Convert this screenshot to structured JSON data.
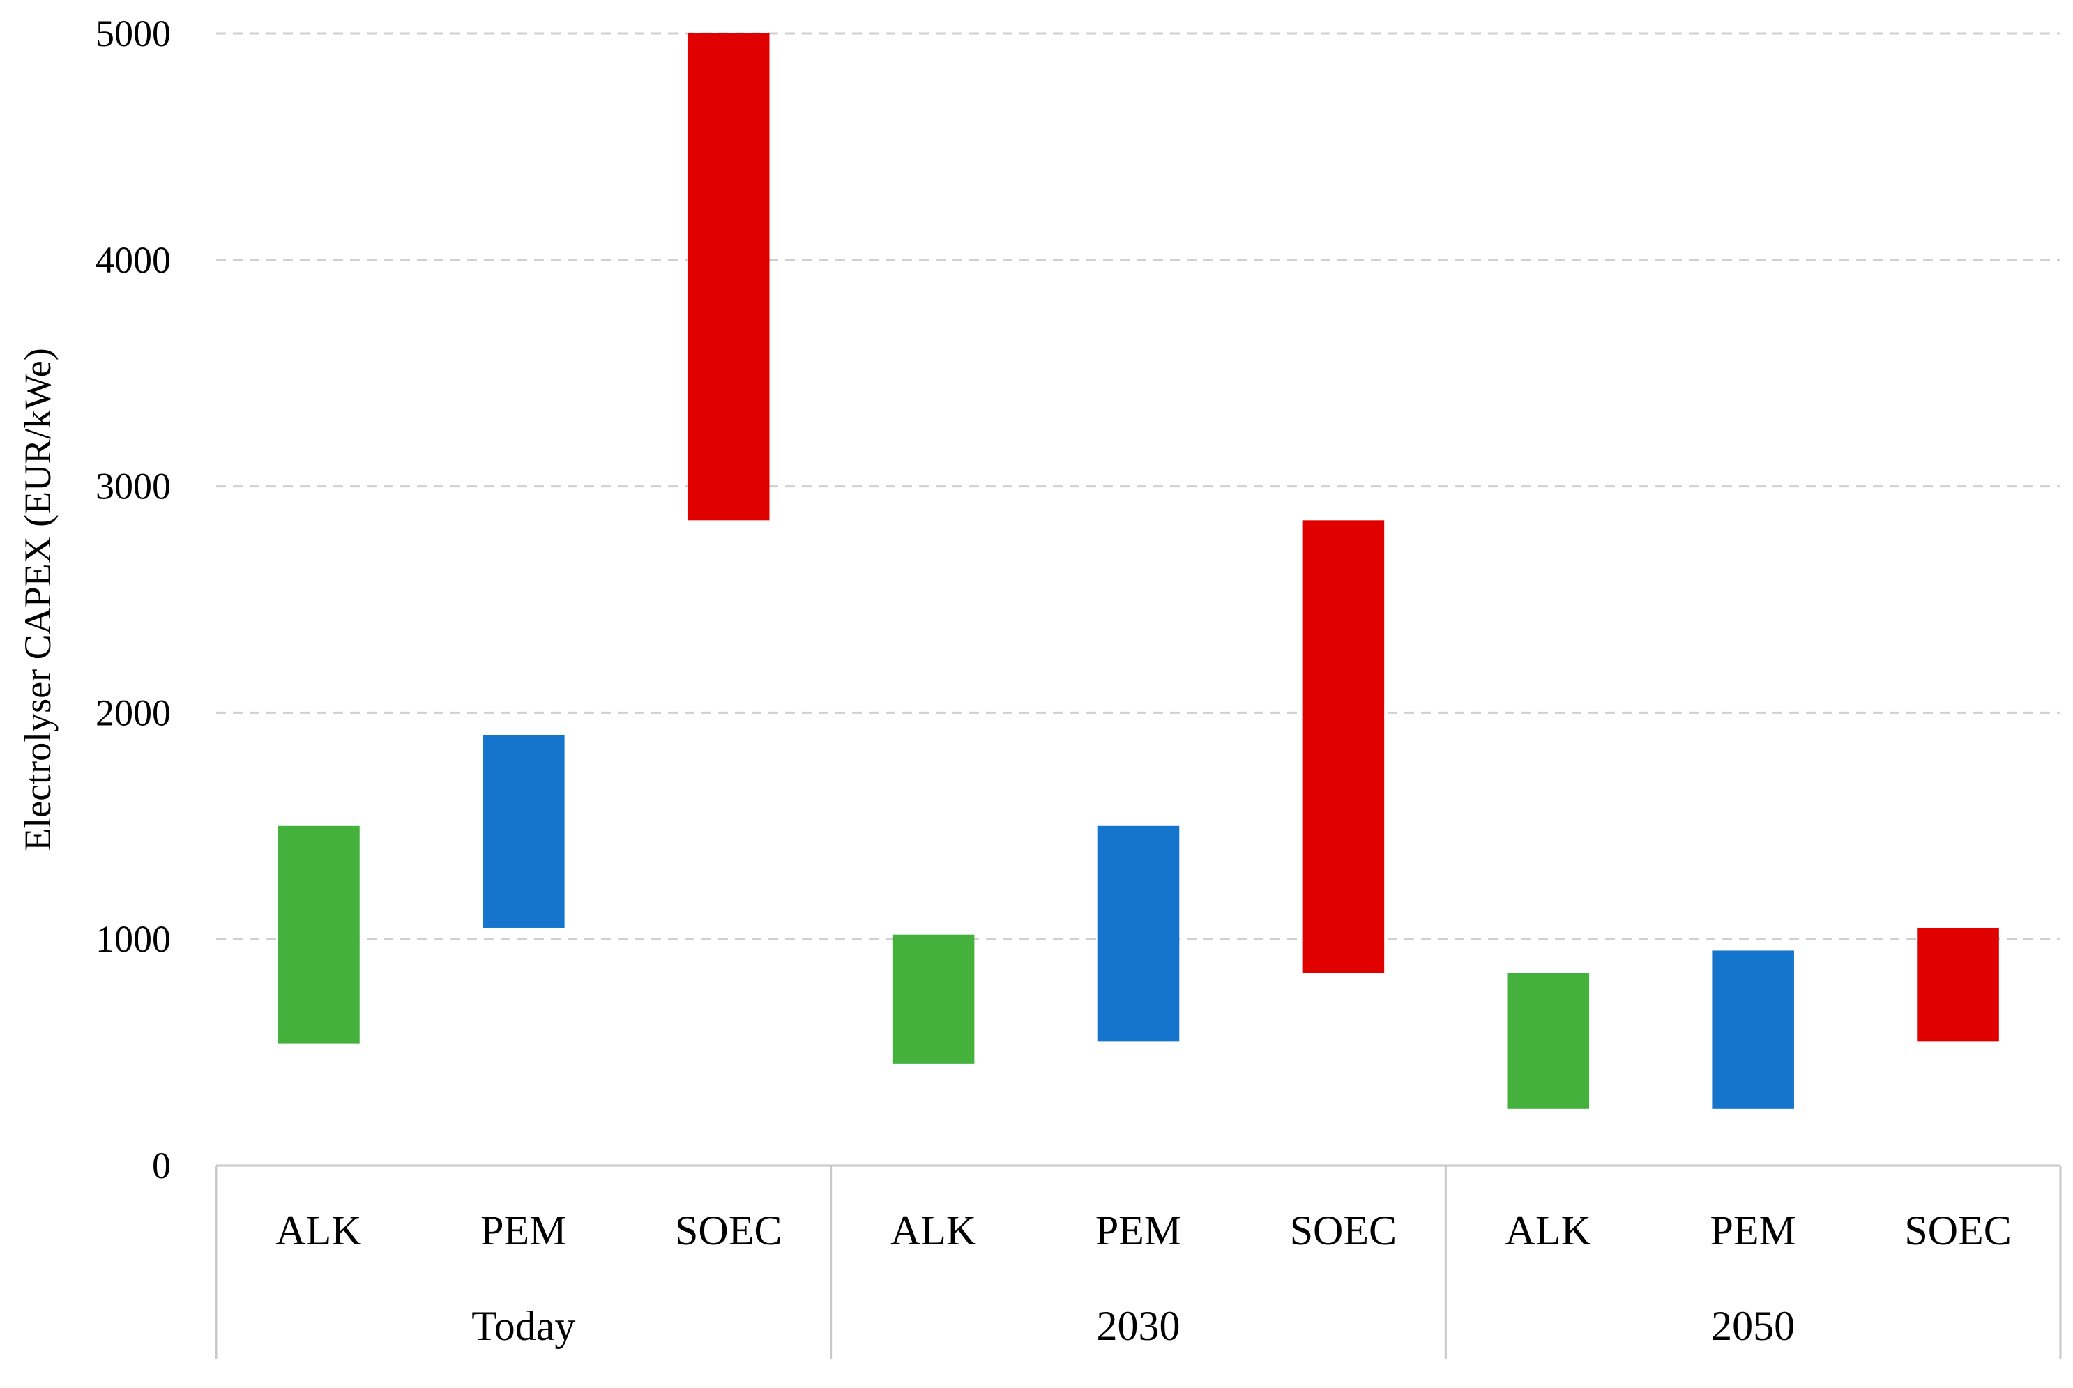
{
  "chart_data": {
    "type": "bar",
    "subtype": "floating-range",
    "ylabel": "Electrolyser CAPEX (EUR/kWe)",
    "xlabel": "",
    "ylim": [
      0,
      5000
    ],
    "yticks": [
      0,
      1000,
      2000,
      3000,
      4000,
      5000
    ],
    "grid": true,
    "groups": [
      "Today",
      "2030",
      "2050"
    ],
    "bars": [
      {
        "group": "Today",
        "category": "ALK",
        "low": 540,
        "high": 1500,
        "color": "#43b13c"
      },
      {
        "group": "Today",
        "category": "PEM",
        "low": 1050,
        "high": 1900,
        "color": "#1574cc"
      },
      {
        "group": "Today",
        "category": "SOEC",
        "low": 2850,
        "high": 5000,
        "color": "#e00000"
      },
      {
        "group": "2030",
        "category": "ALK",
        "low": 450,
        "high": 1020,
        "color": "#43b13c"
      },
      {
        "group": "2030",
        "category": "PEM",
        "low": 550,
        "high": 1500,
        "color": "#1574cc"
      },
      {
        "group": "2030",
        "category": "SOEC",
        "low": 850,
        "high": 2850,
        "color": "#e00000"
      },
      {
        "group": "2050",
        "category": "ALK",
        "low": 250,
        "high": 850,
        "color": "#43b13c"
      },
      {
        "group": "2050",
        "category": "PEM",
        "low": 250,
        "high": 950,
        "color": "#1574cc"
      },
      {
        "group": "2050",
        "category": "SOEC",
        "low": 550,
        "high": 1050,
        "color": "#e00000"
      }
    ]
  }
}
